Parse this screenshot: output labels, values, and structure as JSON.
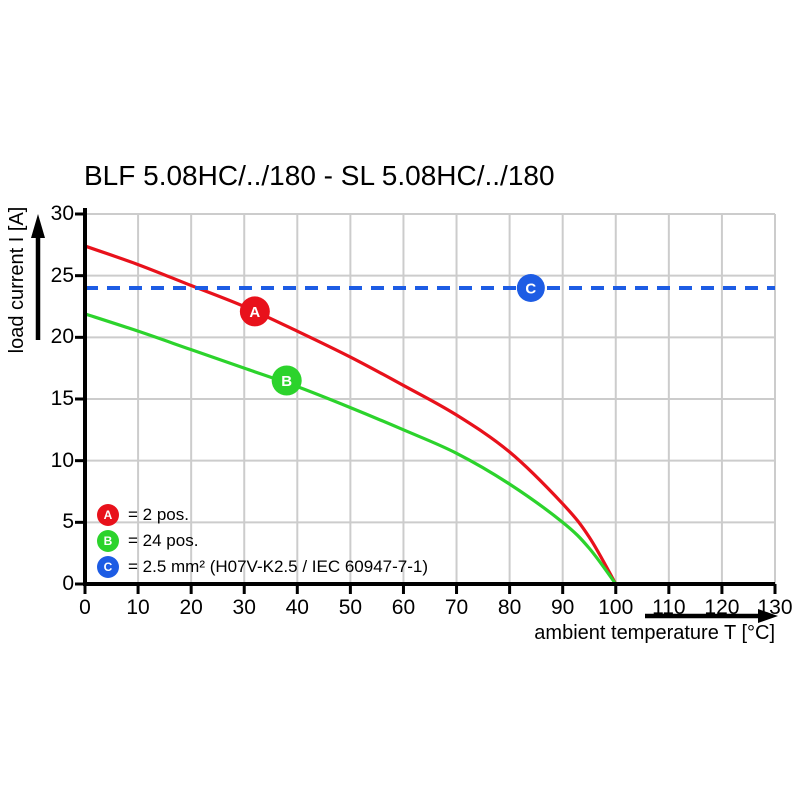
{
  "title": "BLF 5.08HC/../180 - SL 5.08HC/../180",
  "colors": {
    "series_a_red": "#e8111b",
    "series_b_green": "#2cd32c",
    "series_c_blue": "#1d5ce4",
    "grid": "#cccccc",
    "axis": "#000000",
    "marker_text": "#ffffff"
  },
  "chart_data": {
    "type": "line",
    "title": "BLF 5.08HC/../180 - SL 5.08HC/../180",
    "xlabel": "ambient temperature T [°C]",
    "ylabel": "load current I [A]",
    "xlim": [
      0,
      130
    ],
    "ylim": [
      0,
      30
    ],
    "xticks": [
      0,
      10,
      20,
      30,
      40,
      50,
      60,
      70,
      80,
      90,
      100,
      110,
      120,
      130
    ],
    "yticks": [
      0,
      5,
      10,
      15,
      20,
      25,
      30
    ],
    "grid": true,
    "legend_position": "bottom-left-inside",
    "series": [
      {
        "name": "A",
        "legend_label": "= 2 pos.",
        "color": "#e8111b",
        "style": "solid",
        "x": [
          0,
          10,
          20,
          30,
          40,
          50,
          60,
          70,
          80,
          90,
          95,
          100
        ],
        "y": [
          27.4,
          25.9,
          24.2,
          22.5,
          20.5,
          18.4,
          16.1,
          13.7,
          10.7,
          6.5,
          3.8,
          0
        ],
        "marker": {
          "letter": "A",
          "x": 32,
          "y": 22.1
        }
      },
      {
        "name": "B",
        "legend_label": "= 24 pos.",
        "color": "#2cd32c",
        "style": "solid",
        "x": [
          0,
          10,
          20,
          30,
          40,
          50,
          60,
          70,
          80,
          90,
          95,
          100
        ],
        "y": [
          21.9,
          20.5,
          19.0,
          17.5,
          16.0,
          14.3,
          12.5,
          10.6,
          8.1,
          5.0,
          2.9,
          0
        ],
        "marker": {
          "letter": "B",
          "x": 38,
          "y": 16.5
        }
      },
      {
        "name": "C",
        "legend_label": "= 2.5 mm² (H07V-K2.5 / IEC 60947-7-1)",
        "color": "#1d5ce4",
        "style": "dashed",
        "y_const": 24,
        "x_range": [
          0,
          130
        ],
        "marker": {
          "letter": "C",
          "x": 84,
          "y": 24
        }
      }
    ]
  },
  "legend": {
    "rows": [
      {
        "letter": "A",
        "label": "= 2 pos."
      },
      {
        "letter": "B",
        "label": "= 24 pos."
      },
      {
        "letter": "C",
        "label": "= 2.5 mm² (H07V-K2.5 / IEC 60947-7-1)"
      }
    ]
  }
}
